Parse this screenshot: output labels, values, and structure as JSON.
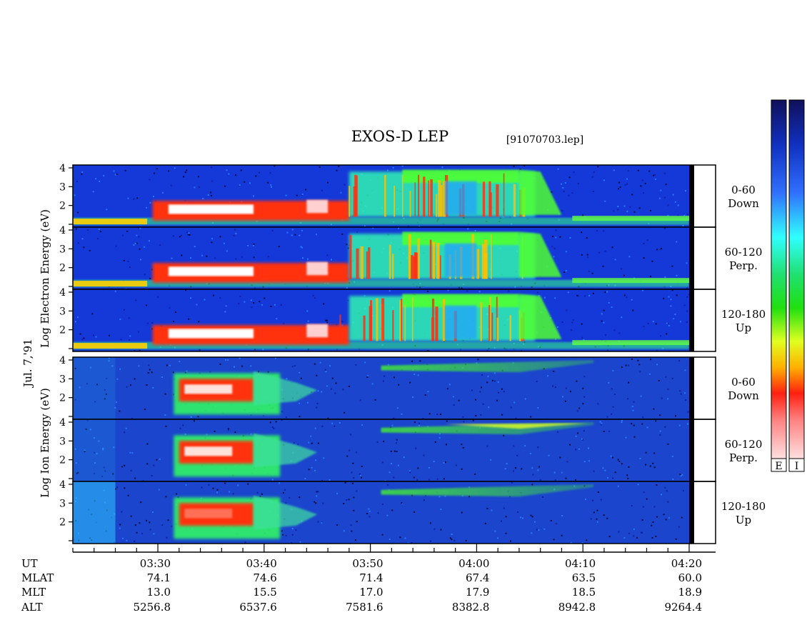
{
  "title": "EXOS-D LEP",
  "file_label": "[91070703.lep]",
  "date_label": "Jul. 7,'91",
  "electron_ylabel": "Log  Electron  Energy (eV)",
  "ion_ylabel": "Log  Ion  Energy (eV)",
  "colorbar_labels": [
    "E",
    "I"
  ],
  "chart_data": {
    "type": "heatmap",
    "x_unit": "UT",
    "x_range_minutes": [
      0,
      58
    ],
    "energy_ticks": [
      "1",
      "2",
      "3",
      "4"
    ],
    "energy_range_log_eV": [
      1,
      4
    ],
    "panels": [
      {
        "species": "Electron",
        "pitch_angle": "0-60",
        "direction": "Down"
      },
      {
        "species": "Electron",
        "pitch_angle": "60-120",
        "direction": "Perp."
      },
      {
        "species": "Electron",
        "pitch_angle": "120-180",
        "direction": "Up"
      },
      {
        "species": "Ion",
        "pitch_angle": "0-60",
        "direction": "Down"
      },
      {
        "species": "Ion",
        "pitch_angle": "60-120",
        "direction": "Perp."
      },
      {
        "species": "Ion",
        "pitch_angle": "120-180",
        "direction": "Up"
      }
    ],
    "rows": [
      {
        "label": "UT",
        "values": [
          "03:30",
          "03:40",
          "03:50",
          "04:00",
          "04:10",
          "04:20"
        ]
      },
      {
        "label": "MLAT",
        "values": [
          "74.1",
          "74.6",
          "71.4",
          "67.4",
          "63.5",
          "60.0"
        ]
      },
      {
        "label": "MLT",
        "values": [
          "13.0",
          "15.5",
          "17.0",
          "17.9",
          "18.5",
          "18.9"
        ]
      },
      {
        "label": "ALT",
        "values": [
          "5256.8",
          "6537.6",
          "7581.6",
          "8382.8",
          "8942.8",
          "9264.4"
        ]
      }
    ],
    "ut_minutes": [
      8,
      18,
      28,
      38,
      48,
      58
    ]
  }
}
